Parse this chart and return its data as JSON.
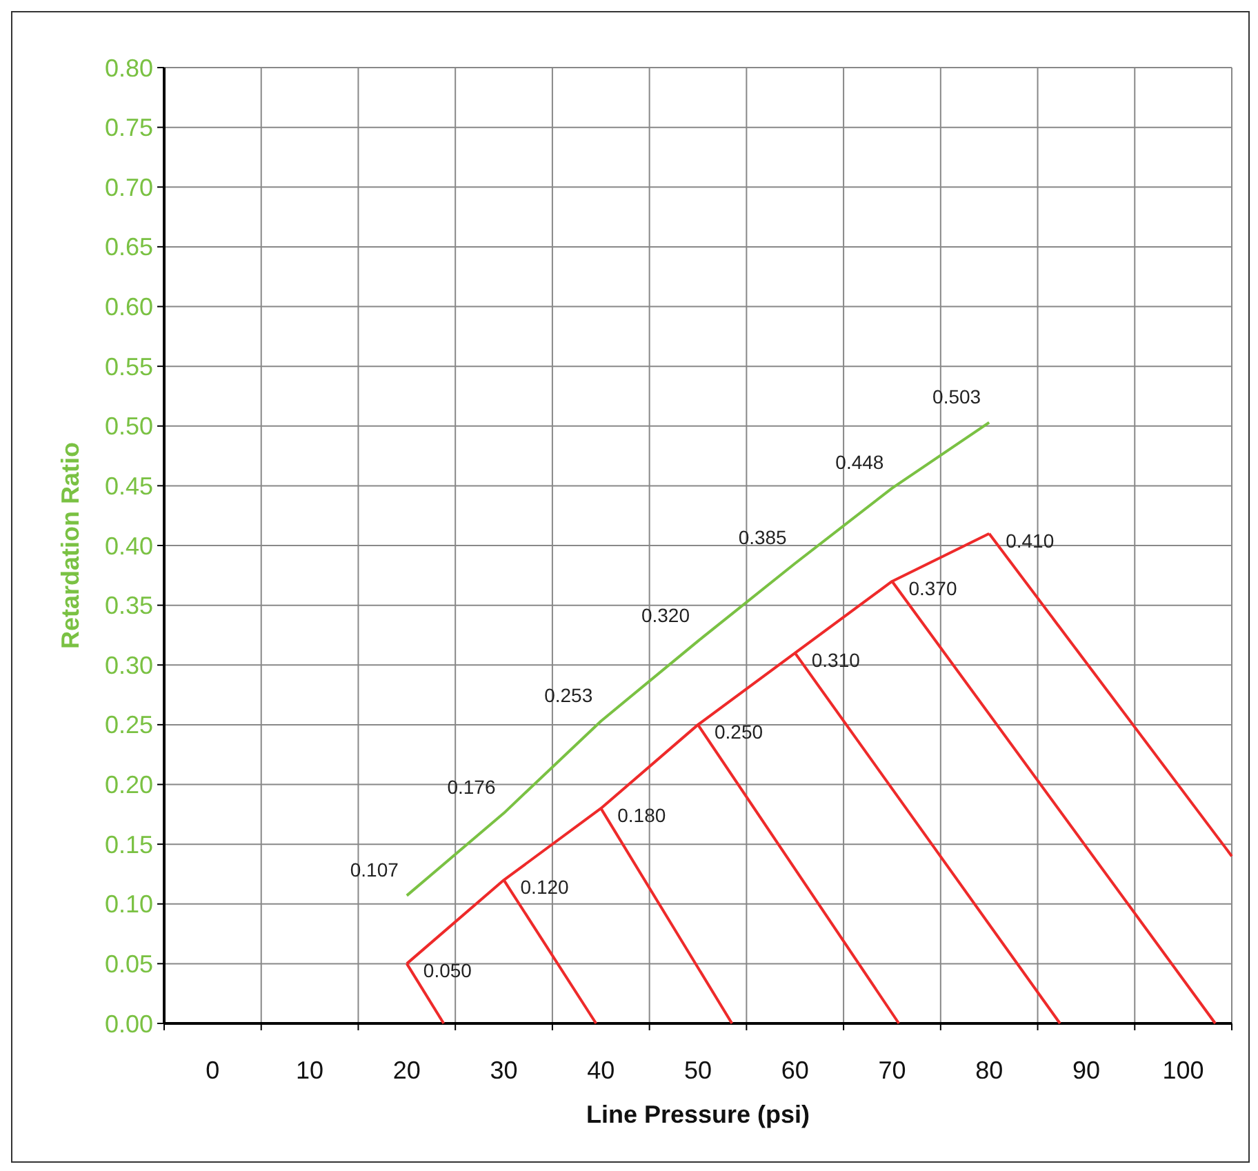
{
  "chart_data": {
    "type": "line",
    "xlabel": "Line Pressure (psi)",
    "ylabel": "Retardation Ratio",
    "xlim": [
      -5,
      105
    ],
    "xticks": [
      {
        "value": -5,
        "label": null
      },
      0,
      {
        "value": 5,
        "label": null
      },
      10,
      {
        "value": 15,
        "label": null
      },
      20,
      {
        "value": 25,
        "label": null
      },
      30,
      {
        "value": 35,
        "label": null
      },
      40,
      {
        "value": 45,
        "label": null
      },
      50,
      {
        "value": 55,
        "label": null
      },
      60,
      {
        "value": 65,
        "label": null
      },
      70,
      {
        "value": 75,
        "label": null
      },
      80,
      {
        "value": 85,
        "label": null
      },
      90,
      {
        "value": 95,
        "label": null
      },
      100,
      {
        "value": 105,
        "label": null
      }
    ],
    "ylim": [
      0,
      0.8
    ],
    "yticks": [
      {
        "value": 0,
        "label": "0.00"
      },
      {
        "value": 0.05,
        "label": "0.05"
      },
      {
        "value": 0.1,
        "label": "0.10"
      },
      {
        "value": 0.15,
        "label": "0.15"
      },
      {
        "value": 0.2,
        "label": "0.20"
      },
      {
        "value": 0.25,
        "label": "0.25"
      },
      {
        "value": 0.3,
        "label": "0.30"
      },
      {
        "value": 0.35,
        "label": "0.35"
      },
      {
        "value": 0.4,
        "label": "0.40"
      },
      {
        "value": 0.45,
        "label": "0.45"
      },
      {
        "value": 0.5,
        "label": "0.50"
      },
      {
        "value": 0.55,
        "label": "0.55"
      },
      {
        "value": 0.6,
        "label": "0.60"
      },
      {
        "value": 0.65,
        "label": "0.65"
      },
      {
        "value": 0.7,
        "label": "0.70"
      },
      {
        "value": 0.75,
        "label": "0.75"
      },
      {
        "value": 0.8,
        "label": "0.80"
      }
    ],
    "grid": true,
    "marker": "none",
    "series": [
      {
        "color": "#7ac143",
        "x": [
          20,
          30,
          40,
          50,
          60,
          70,
          80
        ],
        "values": [
          0.107,
          0.176,
          0.253,
          0.32,
          0.385,
          0.448,
          0.503
        ],
        "value_labels": [
          "0.107",
          "0.176",
          "0.253",
          "0.320",
          "0.385",
          "0.448",
          "0.503"
        ]
      },
      {
        "color": "#ee2a2a",
        "x": [
          20,
          30,
          40,
          50,
          60,
          70,
          80
        ],
        "values": [
          0.05,
          0.12,
          0.18,
          0.25,
          0.31,
          0.37,
          0.41
        ],
        "value_labels": [
          "0.050",
          "0.120",
          "0.180",
          "0.250",
          "0.310",
          "0.370",
          "0.410"
        ]
      },
      {
        "color": "#ee2a2a",
        "x": [
          20,
          23.8
        ],
        "values": [
          0.05,
          0
        ]
      },
      {
        "color": "#ee2a2a",
        "x": [
          30,
          39.5
        ],
        "values": [
          0.12,
          0
        ]
      },
      {
        "color": "#ee2a2a",
        "x": [
          40,
          53.5
        ],
        "values": [
          0.18,
          0
        ]
      },
      {
        "color": "#ee2a2a",
        "x": [
          50,
          70.7
        ],
        "values": [
          0.25,
          0
        ]
      },
      {
        "color": "#ee2a2a",
        "x": [
          60,
          87.3
        ],
        "values": [
          0.31,
          0
        ]
      },
      {
        "color": "#ee2a2a",
        "x": [
          70,
          103.3
        ],
        "values": [
          0.37,
          0
        ]
      },
      {
        "color": "#ee2a2a",
        "x": [
          80,
          105
        ],
        "values": [
          0.41,
          0.14
        ]
      }
    ]
  }
}
